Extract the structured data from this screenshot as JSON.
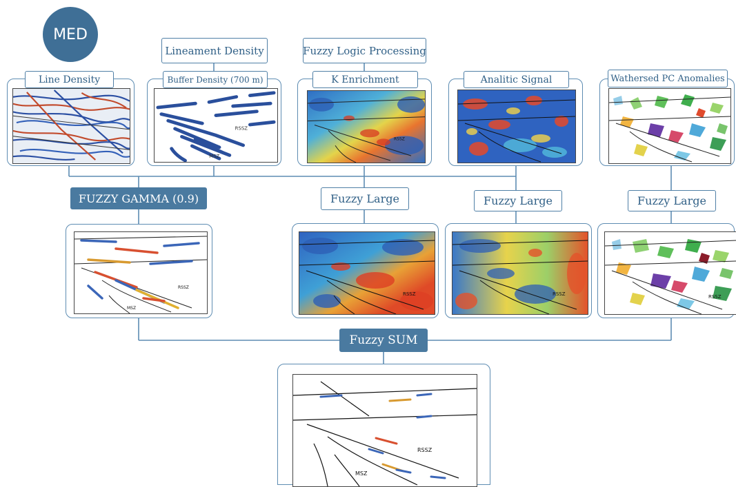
{
  "med": "MED",
  "headers": {
    "lineament_density": "Lineament Density",
    "fuzzy_logic": "Fuzzy Logic Processing"
  },
  "inputs": {
    "line_density": "Line Density",
    "buffer_density": "Buffer Density (700 m)",
    "k_enrichment": "K Enrichment",
    "analitic_signal": "Analitic Signal",
    "pc_anomalies": "Wathersed PC Anomalies"
  },
  "operators": {
    "gamma": "FUZZY GAMMA (0.9)",
    "large_1": "Fuzzy Large",
    "large_2": "Fuzzy Large",
    "large_3": "Fuzzy Large",
    "sum": "Fuzzy SUM"
  },
  "map_labels": {
    "rssz": "RSSZ",
    "msz": "MSZ"
  },
  "colors": {
    "accent": "#4a7aa0",
    "line": "#5d8cb2",
    "label_text": "#2f5f86"
  }
}
